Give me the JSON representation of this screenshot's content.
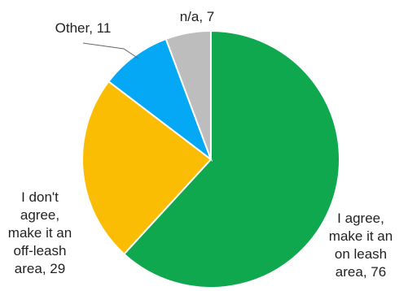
{
  "chart_data": {
    "type": "pie",
    "start_angle_deg": 0,
    "direction": "clockwise",
    "slices": [
      {
        "label": "I agree, make it an on leash area",
        "value": 76,
        "color": "#0FA84F",
        "label_lines": [
          "I agree,",
          "make it an",
          "on leash",
          "area, 76"
        ]
      },
      {
        "label": "I don't agree, make it an off-leash area",
        "value": 29,
        "color": "#FBBC04",
        "label_lines": [
          "I don't",
          "agree,",
          "make it an",
          "off-leash",
          "area, 29"
        ]
      },
      {
        "label": "Other",
        "value": 11,
        "color": "#04A8F4",
        "label_lines": [
          "Other, 11"
        ]
      },
      {
        "label": "n/a",
        "value": 7,
        "color": "#BDBDBD",
        "label_lines": [
          "n/a, 7"
        ]
      }
    ]
  }
}
